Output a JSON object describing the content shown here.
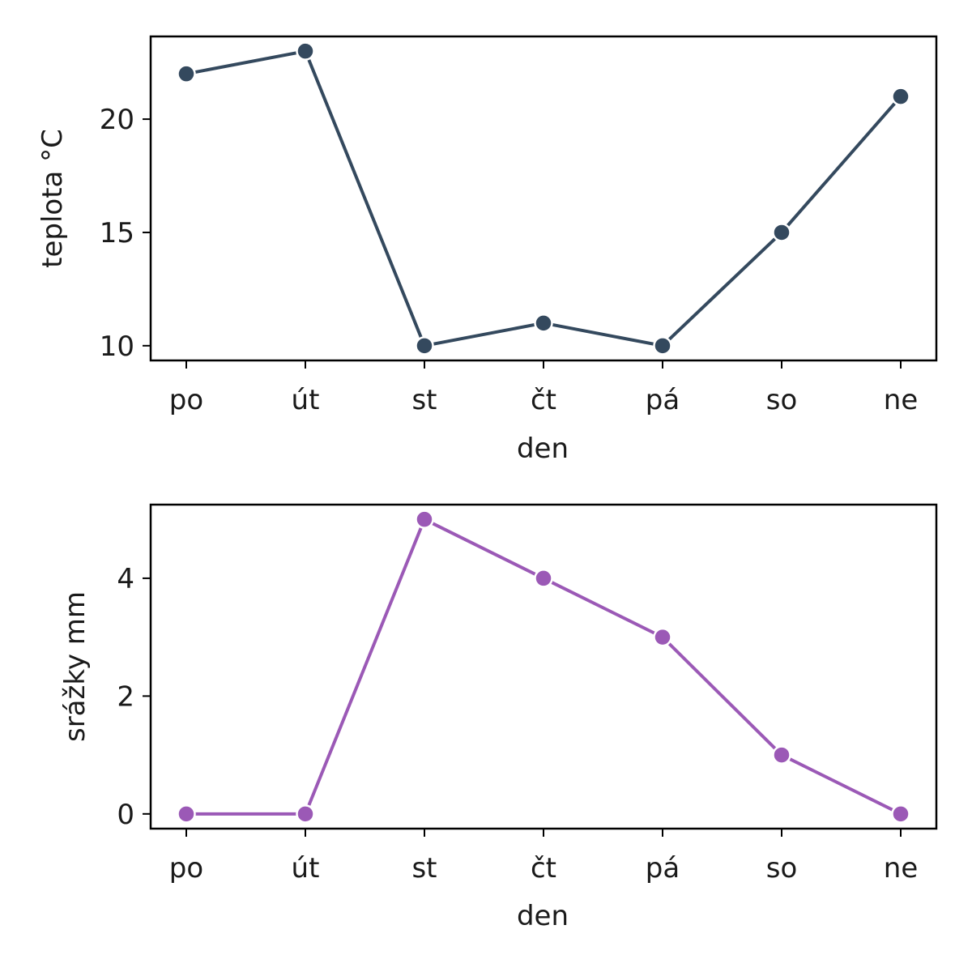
{
  "chart_data": [
    {
      "type": "line",
      "title": "",
      "xlabel": "den",
      "ylabel": "teplota °C",
      "categories": [
        "po",
        "út",
        "st",
        "čt",
        "pá",
        "so",
        "ne"
      ],
      "series": [
        {
          "values": [
            22,
            23,
            10,
            11,
            10,
            15,
            21
          ],
          "color": "#34495e",
          "marker": "circle"
        }
      ],
      "ylim": [
        9.35,
        23.65
      ],
      "yticks": [
        10,
        15,
        20
      ],
      "grid": false,
      "legend": "none"
    },
    {
      "type": "line",
      "title": "",
      "xlabel": "den",
      "ylabel": "srážky mm",
      "categories": [
        "po",
        "út",
        "st",
        "čt",
        "pá",
        "so",
        "ne"
      ],
      "series": [
        {
          "values": [
            0,
            0,
            5,
            4,
            3,
            1,
            0
          ],
          "color": "#9b59b6",
          "marker": "circle"
        }
      ],
      "ylim": [
        -0.25,
        5.25
      ],
      "yticks": [
        0,
        2,
        4
      ],
      "grid": false,
      "legend": "none"
    }
  ]
}
